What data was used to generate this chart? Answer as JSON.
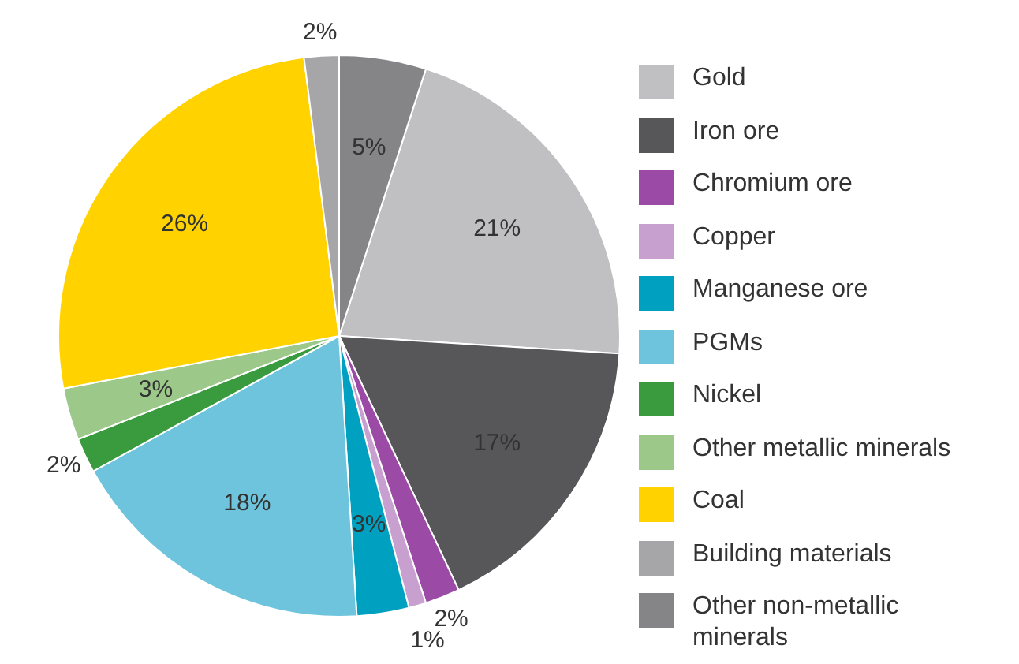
{
  "chart_data": {
    "type": "pie",
    "categories": [
      "Gold",
      "Iron ore",
      "Chromium ore",
      "Copper",
      "Manganese ore",
      "PGMs",
      "Nickel",
      "Other metallic minerals",
      "Coal",
      "Building materials",
      "Other non-metallic minerals"
    ],
    "values": [
      21,
      17,
      2,
      1,
      3,
      18,
      2,
      3,
      26,
      2,
      5
    ],
    "value_labels": [
      "21%",
      "17%",
      "2%",
      "1%",
      "3%",
      "18%",
      "2%",
      "3%",
      "26%",
      "2%",
      "5%"
    ],
    "colors": [
      "#c0c0c2",
      "#57575a",
      "#9b4aa6",
      "#c8a0d0",
      "#00a0c0",
      "#6ec4dc",
      "#3a9a3e",
      "#9cc98a",
      "#ffd200",
      "#a6a6a8",
      "#858588"
    ],
    "legend": "right"
  }
}
